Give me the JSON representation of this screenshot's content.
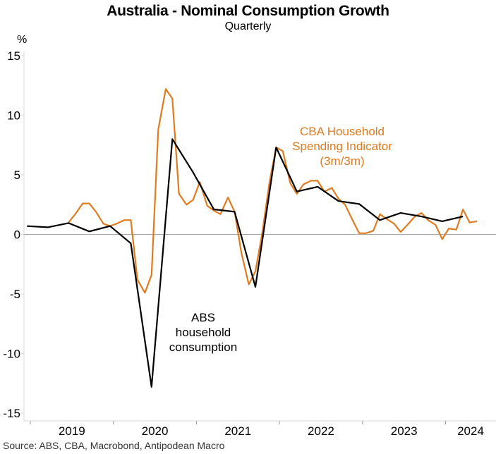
{
  "chart_data": {
    "type": "line",
    "title": "Australia - Nominal Consumption Growth",
    "subtitle": "Quarterly",
    "ylabel": "%",
    "xlabel": "",
    "ylim": [
      -15,
      15
    ],
    "yticks": [
      15,
      10,
      5,
      0,
      -5,
      -10,
      -15
    ],
    "xlim": [
      2018.95,
      2024.6
    ],
    "xticks": [
      2019,
      2020,
      2021,
      2022,
      2023,
      2024
    ],
    "xtick_labels": [
      "2019",
      "2020",
      "2021",
      "2022",
      "2023",
      "2024"
    ],
    "grid": false,
    "zero_line": true,
    "legend": "inline annotations",
    "series": [
      {
        "name": "ABS household consumption",
        "color": "#000000",
        "frequency": "quarterly",
        "x": [
          2018.96,
          2019.21,
          2019.46,
          2019.71,
          2019.96,
          2020.21,
          2020.46,
          2020.71,
          2020.96,
          2021.21,
          2021.46,
          2021.71,
          2021.96,
          2022.21,
          2022.46,
          2022.71,
          2022.96,
          2023.21,
          2023.46,
          2023.71,
          2023.96,
          2024.21
        ],
        "values": [
          0.7,
          0.6,
          0.95,
          0.25,
          0.7,
          -0.75,
          -12.8,
          8.0,
          5.2,
          2.1,
          1.9,
          -4.4,
          7.3,
          3.6,
          4.0,
          2.8,
          2.55,
          1.2,
          1.8,
          1.5,
          1.1,
          1.5
        ]
      },
      {
        "name": "CBA Household Spending Indicator (3m/3m)",
        "color": "#E07B1F",
        "frequency": "monthly",
        "x": [
          2019.46,
          2019.54,
          2019.63,
          2019.71,
          2019.79,
          2019.88,
          2019.96,
          2020.04,
          2020.13,
          2020.21,
          2020.29,
          2020.38,
          2020.46,
          2020.54,
          2020.63,
          2020.71,
          2020.79,
          2020.88,
          2020.96,
          2021.04,
          2021.13,
          2021.21,
          2021.29,
          2021.38,
          2021.46,
          2021.54,
          2021.63,
          2021.71,
          2021.79,
          2021.88,
          2021.96,
          2022.04,
          2022.13,
          2022.21,
          2022.29,
          2022.38,
          2022.46,
          2022.54,
          2022.63,
          2022.71,
          2022.79,
          2022.88,
          2022.96,
          2023.04,
          2023.13,
          2023.21,
          2023.29,
          2023.38,
          2023.46,
          2023.54,
          2023.63,
          2023.71,
          2023.79,
          2023.88,
          2023.96,
          2024.04,
          2024.13,
          2024.21,
          2024.29,
          2024.38
        ],
        "values": [
          1.0,
          1.7,
          2.6,
          2.6,
          1.9,
          0.9,
          0.7,
          0.9,
          1.2,
          1.2,
          -3.8,
          -4.9,
          -3.4,
          8.8,
          12.2,
          11.4,
          3.4,
          2.5,
          2.9,
          4.4,
          2.4,
          2.0,
          1.7,
          3.1,
          1.9,
          -1.5,
          -4.2,
          -3.1,
          0.0,
          4.4,
          7.3,
          7.0,
          4.3,
          3.4,
          4.2,
          4.5,
          4.5,
          3.6,
          3.9,
          3.0,
          2.5,
          1.2,
          0.1,
          0.1,
          0.3,
          1.7,
          1.3,
          0.9,
          0.2,
          0.8,
          1.5,
          1.8,
          1.2,
          0.8,
          -0.4,
          0.5,
          0.4,
          2.1,
          1.0,
          1.1
        ]
      }
    ],
    "annotations": [
      {
        "text_lines": [
          "ABS",
          "household",
          "consumption"
        ],
        "series": "ABS household consumption"
      },
      {
        "text_lines": [
          "CBA Household",
          "Spending Indicator",
          "(3m/3m)"
        ],
        "series": "CBA Household Spending Indicator (3m/3m)"
      }
    ],
    "source": "Source: ABS, CBA, Macrobond, Antipodean Macro"
  }
}
